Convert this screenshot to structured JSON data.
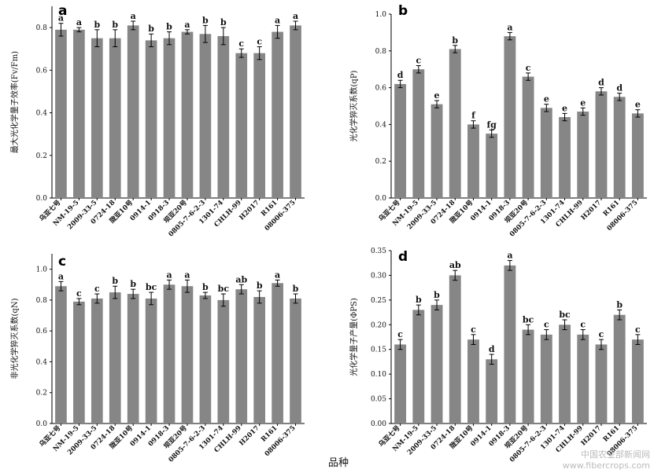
{
  "figure": {
    "x_title": "品种",
    "watermark_line1": "中国农业部新闻网",
    "watermark_line2": "www.fibercrops.com",
    "colors": {
      "bar": "#868686",
      "axis": "#000000"
    }
  },
  "chart_data": [
    {
      "type": "bar",
      "panel": "a",
      "ylabel": "最大光化学量子效率(Fv/Fm)",
      "ylim": [
        0,
        0.9
      ],
      "yticks": [
        "0.0",
        "0.2",
        "0.4",
        "0.6",
        "0.8"
      ],
      "categories": [
        "乌亚七号",
        "NM-19-5",
        "2009-33-5",
        "0724-18",
        "陇亚10号",
        "0914-1",
        "0918-3",
        "坝亚20号",
        "0805-7-6-2-3",
        "1301-74",
        "CHLH-99",
        "H2017",
        "R161",
        "08006-375"
      ],
      "values": [
        0.79,
        0.79,
        0.75,
        0.75,
        0.81,
        0.74,
        0.75,
        0.78,
        0.77,
        0.76,
        0.68,
        0.68,
        0.78,
        0.81
      ],
      "errors": [
        0.03,
        0.01,
        0.04,
        0.04,
        0.02,
        0.03,
        0.03,
        0.01,
        0.04,
        0.04,
        0.02,
        0.03,
        0.03,
        0.02
      ],
      "labels": [
        "a",
        "a",
        "b",
        "b",
        "a",
        "b",
        "b",
        "a",
        "b",
        "b",
        "c",
        "c",
        "a",
        "a"
      ]
    },
    {
      "type": "bar",
      "panel": "b",
      "ylabel": "光化学猝灭系数(qP)",
      "ylim": [
        0,
        1.0
      ],
      "yticks": [
        "0.0",
        "0.2",
        "0.4",
        "0.6",
        "0.8",
        "1.0"
      ],
      "categories": [
        "乌亚七号",
        "NM-19-5",
        "2009-33-5",
        "0724-18",
        "陇亚10号",
        "0914-1",
        "0918-3",
        "坝亚20号",
        "0805-7-6-2-3",
        "1301-74",
        "CHLH-99",
        "H2017",
        "R161",
        "08006-375"
      ],
      "values": [
        0.62,
        0.7,
        0.51,
        0.81,
        0.4,
        0.35,
        0.88,
        0.66,
        0.49,
        0.44,
        0.47,
        0.58,
        0.55,
        0.46
      ],
      "errors": [
        0.02,
        0.02,
        0.02,
        0.02,
        0.02,
        0.02,
        0.02,
        0.02,
        0.02,
        0.02,
        0.02,
        0.02,
        0.02,
        0.02
      ],
      "labels": [
        "d",
        "c",
        "e",
        "b",
        "f",
        "fg",
        "a",
        "c",
        "e",
        "e",
        "e",
        "d",
        "d",
        "e"
      ]
    },
    {
      "type": "bar",
      "panel": "c",
      "ylabel": "非光化学猝灭系数(qN)",
      "ylim": [
        0,
        1.1
      ],
      "yticks": [
        "0.0",
        "0.2",
        "0.4",
        "0.6",
        "0.8",
        "1.0"
      ],
      "categories": [
        "乌亚七号",
        "NM-19-5",
        "2009-33-5",
        "0724-18",
        "陇亚10号",
        "0914-1",
        "0918-3",
        "坝亚20号",
        "0805-7-6-2-3",
        "1301-74",
        "CHLH-99",
        "H2017",
        "R161",
        "08006-375"
      ],
      "values": [
        0.89,
        0.79,
        0.81,
        0.85,
        0.84,
        0.81,
        0.9,
        0.89,
        0.83,
        0.8,
        0.87,
        0.82,
        0.91,
        0.81
      ],
      "errors": [
        0.03,
        0.02,
        0.03,
        0.04,
        0.03,
        0.04,
        0.03,
        0.04,
        0.02,
        0.04,
        0.03,
        0.04,
        0.02,
        0.03
      ],
      "labels": [
        "a",
        "c",
        "c",
        "b",
        "b",
        "bc",
        "a",
        "a",
        "b",
        "bc",
        "ab",
        "b",
        "a",
        "b"
      ]
    },
    {
      "type": "bar",
      "panel": "d",
      "ylabel": "光化学量子产量(ΦPS)",
      "ylim": [
        0,
        0.35
      ],
      "yticks": [
        "0.00",
        "0.05",
        "0.10",
        "0.15",
        "0.20",
        "0.25",
        "0.30",
        "0.35"
      ],
      "categories": [
        "乌亚七号",
        "NM-19-5",
        "2009-33-5",
        "0724-18",
        "陇亚10号",
        "0914-1",
        "0918-3",
        "坝亚20号",
        "0805-7-6-2-3",
        "1301-74",
        "CHLH-99",
        "H2017",
        "R161",
        "08006-375"
      ],
      "values": [
        0.16,
        0.23,
        0.24,
        0.3,
        0.17,
        0.13,
        0.32,
        0.19,
        0.18,
        0.2,
        0.18,
        0.16,
        0.22,
        0.17
      ],
      "errors": [
        0.01,
        0.01,
        0.01,
        0.01,
        0.01,
        0.01,
        0.01,
        0.01,
        0.01,
        0.01,
        0.01,
        0.01,
        0.01,
        0.01
      ],
      "labels": [
        "c",
        "b",
        "b",
        "ab",
        "c",
        "d",
        "a",
        "bc",
        "c",
        "bc",
        "c",
        "c",
        "b",
        "c"
      ]
    }
  ]
}
